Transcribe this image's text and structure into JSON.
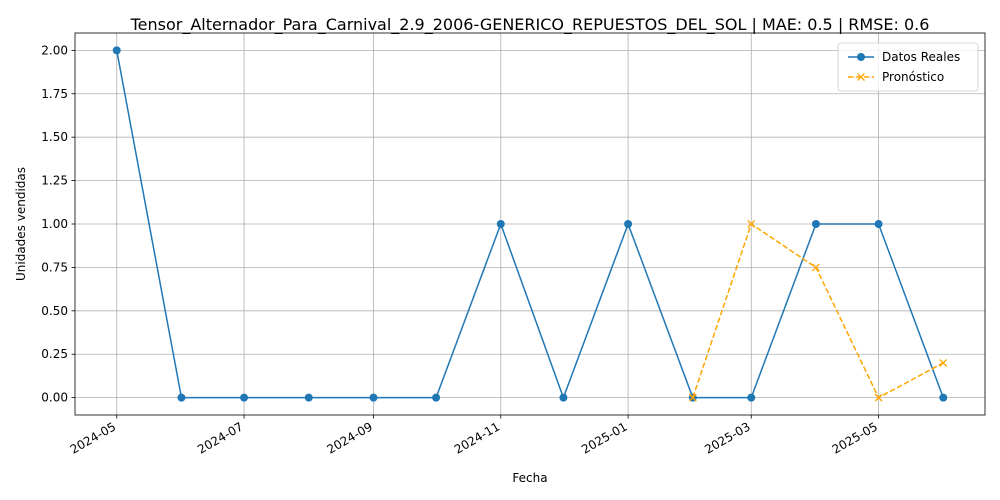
{
  "chart_data": {
    "type": "line",
    "title": "Tensor_Alternador_Para_Carnival_2.9_2006-GENERICO_REPUESTOS_DEL_SOL | MAE: 0.5 | RMSE: 0.6",
    "xlabel": "Fecha",
    "ylabel": "Unidades vendidas",
    "x_tick_labels": [
      "2024-05",
      "2024-07",
      "2024-09",
      "2024-11",
      "2025-01",
      "2025-03",
      "2025-05"
    ],
    "y_tick_labels": [
      "0.00",
      "0.25",
      "0.50",
      "0.75",
      "1.00",
      "1.25",
      "1.50",
      "1.75",
      "2.00"
    ],
    "ylim": [
      -0.1,
      2.1
    ],
    "xlim": [
      "2024-04-11",
      "2025-06-21"
    ],
    "grid": true,
    "legend_position": "top-right",
    "series": [
      {
        "name": "Datos Reales",
        "color": "#1f77b4",
        "linestyle": "solid",
        "marker": "circle",
        "x": [
          "2024-05-01",
          "2024-06-01",
          "2024-07-01",
          "2024-08-01",
          "2024-09-01",
          "2024-10-01",
          "2024-11-01",
          "2024-12-01",
          "2025-01-01",
          "2025-02-01",
          "2025-03-01",
          "2025-04-01",
          "2025-05-01",
          "2025-06-01"
        ],
        "values": [
          2,
          0,
          0,
          0,
          0,
          0,
          1,
          0,
          1,
          0,
          0,
          1,
          1,
          0
        ]
      },
      {
        "name": "Pronóstico",
        "color": "#ffa500",
        "linestyle": "dashed",
        "marker": "x",
        "x": [
          "2025-02-01",
          "2025-03-01",
          "2025-04-01",
          "2025-05-01",
          "2025-06-01"
        ],
        "values": [
          0,
          1,
          0.75,
          0,
          0.2
        ]
      }
    ]
  }
}
